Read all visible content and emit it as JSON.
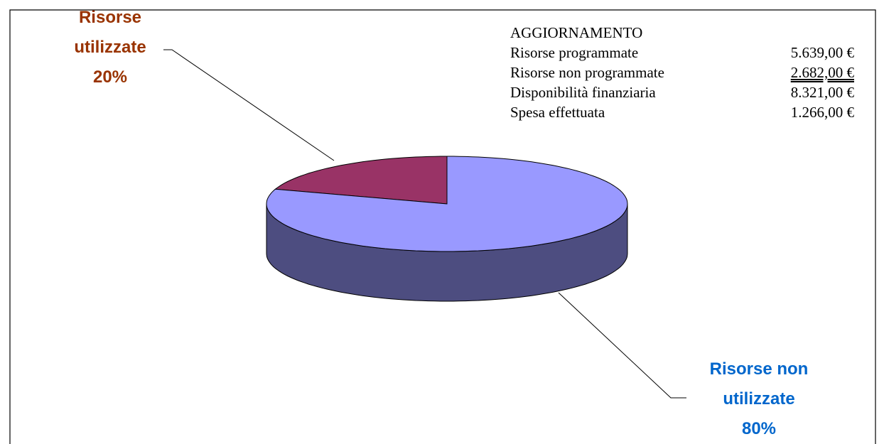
{
  "chart_data": {
    "type": "pie",
    "categories": [
      "Risorse utilizzate",
      "Risorse non utilizzate"
    ],
    "values": [
      20,
      80
    ],
    "value_labels": [
      "20%",
      "80%"
    ],
    "colors": [
      "#993366",
      "#9999ff"
    ],
    "side_colors": [
      "#5c1f3d",
      "#4d4d80"
    ],
    "label_colors": [
      "#993300",
      "#0066cc"
    ],
    "info_box": {
      "title": "AGGIORNAMENTO",
      "rows": [
        {
          "label": "Risorse programmate",
          "value": "5.639,00 €"
        },
        {
          "label": "Risorse non programmate",
          "value": "2.682,00 €"
        },
        {
          "label": "Disponibilità finanziaria",
          "value": "8.321,00 €"
        },
        {
          "label": "Spesa effettuata",
          "value": "1.266,00 €"
        }
      ]
    }
  }
}
